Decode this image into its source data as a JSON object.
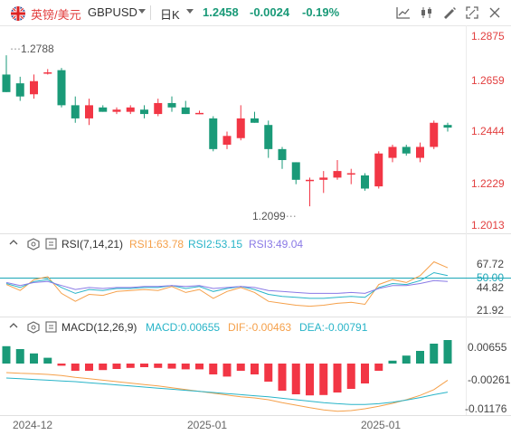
{
  "symbol": {
    "name": "英镑/美元",
    "code": "GBPUSD",
    "period": "日K"
  },
  "quote": {
    "price": "1.2458",
    "change": "-0.0024",
    "change_pct": "-0.19%"
  },
  "toolbar_icons": [
    "indicator-icon",
    "candle-style-icon",
    "drawing-tools-icon",
    "fullscreen-icon",
    "settings-icon"
  ],
  "colors": {
    "up": "#f23645",
    "down": "#1a9a78",
    "price_label": "#e23e3e",
    "rsi1": "#f5a04a",
    "rsi2": "#28b4c8",
    "rsi3": "#8a7ae6",
    "macd": "#28b4c8",
    "dif": "#f5a04a",
    "dea": "#28b4c8"
  },
  "price_axis": [
    "1.2875",
    "1.2659",
    "1.2444",
    "1.2229",
    "1.2013"
  ],
  "rsi_axis": [
    "67.72",
    "50.00",
    "44.82",
    "21.92"
  ],
  "macd_axis": [
    "0.00655",
    "-0.00261",
    "-0.01176"
  ],
  "date_labels": [
    "2024-12",
    "2025-01",
    "2025-01"
  ],
  "rsi_header": {
    "name": "RSI(7,14,21)",
    "rsi1": "RSI1:63.78",
    "rsi2": "RSI2:53.15",
    "rsi3": "RSI3:49.04"
  },
  "macd_header": {
    "name": "MACD(12,26,9)",
    "macd": "MACD:0.00655",
    "dif": "DIF:-0.00463",
    "dea": "DEA:-0.00791"
  },
  "chart_data": {
    "type": "candlestick",
    "price_range": [
      1.2013,
      1.2875
    ],
    "high_label": "1.2788",
    "low_label": "1.2099",
    "candles": [
      {
        "o": 1.27,
        "h": 1.2788,
        "l": 1.262,
        "c": 1.262
      },
      {
        "o": 1.266,
        "h": 1.269,
        "l": 1.258,
        "c": 1.26
      },
      {
        "o": 1.261,
        "h": 1.27,
        "l": 1.259,
        "c": 1.267
      },
      {
        "o": 1.271,
        "h": 1.2725,
        "l": 1.27,
        "c": 1.271
      },
      {
        "o": 1.272,
        "h": 1.273,
        "l": 1.255,
        "c": 1.256
      },
      {
        "o": 1.256,
        "h": 1.26,
        "l": 1.248,
        "c": 1.25
      },
      {
        "o": 1.25,
        "h": 1.259,
        "l": 1.247,
        "c": 1.256
      },
      {
        "o": 1.255,
        "h": 1.256,
        "l": 1.253,
        "c": 1.253
      },
      {
        "o": 1.253,
        "h": 1.255,
        "l": 1.252,
        "c": 1.254
      },
      {
        "o": 1.253,
        "h": 1.256,
        "l": 1.252,
        "c": 1.255
      },
      {
        "o": 1.254,
        "h": 1.256,
        "l": 1.25,
        "c": 1.252
      },
      {
        "o": 1.252,
        "h": 1.259,
        "l": 1.251,
        "c": 1.257
      },
      {
        "o": 1.257,
        "h": 1.26,
        "l": 1.253,
        "c": 1.255
      },
      {
        "o": 1.255,
        "h": 1.258,
        "l": 1.252,
        "c": 1.252
      },
      {
        "o": 1.252,
        "h": 1.2535,
        "l": 1.252,
        "c": 1.2525
      },
      {
        "o": 1.25,
        "h": 1.251,
        "l": 1.235,
        "c": 1.236
      },
      {
        "o": 1.238,
        "h": 1.244,
        "l": 1.236,
        "c": 1.242
      },
      {
        "o": 1.241,
        "h": 1.256,
        "l": 1.24,
        "c": 1.25
      },
      {
        "o": 1.25,
        "h": 1.253,
        "l": 1.248,
        "c": 1.248
      },
      {
        "o": 1.247,
        "h": 1.249,
        "l": 1.232,
        "c": 1.236
      },
      {
        "o": 1.236,
        "h": 1.237,
        "l": 1.227,
        "c": 1.231
      },
      {
        "o": 1.23,
        "h": 1.23,
        "l": 1.22,
        "c": 1.222
      },
      {
        "o": 1.222,
        "h": 1.223,
        "l": 1.2099,
        "c": 1.222
      },
      {
        "o": 1.222,
        "h": 1.226,
        "l": 1.216,
        "c": 1.223
      },
      {
        "o": 1.223,
        "h": 1.231,
        "l": 1.222,
        "c": 1.226
      },
      {
        "o": 1.225,
        "h": 1.227,
        "l": 1.22,
        "c": 1.225
      },
      {
        "o": 1.224,
        "h": 1.225,
        "l": 1.217,
        "c": 1.218
      },
      {
        "o": 1.219,
        "h": 1.235,
        "l": 1.218,
        "c": 1.234
      },
      {
        "o": 1.232,
        "h": 1.238,
        "l": 1.23,
        "c": 1.237
      },
      {
        "o": 1.237,
        "h": 1.238,
        "l": 1.233,
        "c": 1.234
      },
      {
        "o": 1.232,
        "h": 1.239,
        "l": 1.23,
        "c": 1.237
      },
      {
        "o": 1.237,
        "h": 1.249,
        "l": 1.236,
        "c": 1.248
      },
      {
        "o": 1.247,
        "h": 1.248,
        "l": 1.244,
        "c": 1.2458
      }
    ],
    "rsi": {
      "range": [
        21.92,
        67.72
      ],
      "rsi1": [
        47,
        41,
        52,
        55,
        38,
        30,
        37,
        36,
        40,
        41,
        42,
        41,
        45,
        39,
        42,
        33,
        40,
        44,
        39,
        30,
        28,
        26,
        25,
        26,
        28,
        29,
        27,
        47,
        52,
        49,
        56,
        70,
        64
      ],
      "rsi2": [
        48,
        44,
        50,
        52,
        44,
        38,
        42,
        41,
        43,
        43,
        44,
        44,
        46,
        43,
        45,
        40,
        43,
        45,
        42,
        37,
        35,
        34,
        33,
        33,
        34,
        35,
        34,
        44,
        48,
        47,
        51,
        59,
        56
      ],
      "rsi3": [
        49,
        46,
        49,
        50,
        46,
        42,
        44,
        43,
        44,
        44,
        45,
        45,
        46,
        45,
        46,
        43,
        44,
        45,
        44,
        41,
        40,
        39,
        38,
        38,
        38,
        39,
        38,
        43,
        46,
        46,
        48,
        51,
        50
      ]
    },
    "macd": {
      "range": [
        -0.0135,
        0.0075
      ],
      "hist": [
        0.0048,
        0.004,
        0.0028,
        0.0016,
        -0.0006,
        -0.002,
        -0.002,
        -0.0018,
        -0.0015,
        -0.0012,
        -0.001,
        -0.0012,
        -0.0014,
        -0.0016,
        -0.0016,
        -0.003,
        -0.0036,
        -0.002,
        -0.003,
        -0.005,
        -0.0075,
        -0.0085,
        -0.0088,
        -0.0087,
        -0.008,
        -0.007,
        -0.0055,
        -0.002,
        0.0008,
        0.0022,
        0.0035,
        0.0055,
        0.0065
      ],
      "dif": [
        -0.0025,
        -0.0027,
        -0.0028,
        -0.003,
        -0.0033,
        -0.0038,
        -0.0042,
        -0.0046,
        -0.005,
        -0.0054,
        -0.0058,
        -0.0062,
        -0.0067,
        -0.0072,
        -0.0077,
        -0.0082,
        -0.0087,
        -0.0092,
        -0.0095,
        -0.01,
        -0.0108,
        -0.0115,
        -0.0122,
        -0.0128,
        -0.0132,
        -0.013,
        -0.0125,
        -0.0118,
        -0.011,
        -0.01,
        -0.0088,
        -0.0072,
        -0.0046
      ],
      "dea": [
        -0.004,
        -0.0042,
        -0.0044,
        -0.0046,
        -0.0048,
        -0.005,
        -0.0053,
        -0.0056,
        -0.0059,
        -0.0062,
        -0.0065,
        -0.0068,
        -0.0071,
        -0.0074,
        -0.0077,
        -0.008,
        -0.0083,
        -0.0086,
        -0.0089,
        -0.0092,
        -0.0096,
        -0.01,
        -0.0104,
        -0.0108,
        -0.0111,
        -0.0113,
        -0.0113,
        -0.0111,
        -0.0107,
        -0.0101,
        -0.0094,
        -0.0086,
        -0.0079
      ]
    }
  }
}
